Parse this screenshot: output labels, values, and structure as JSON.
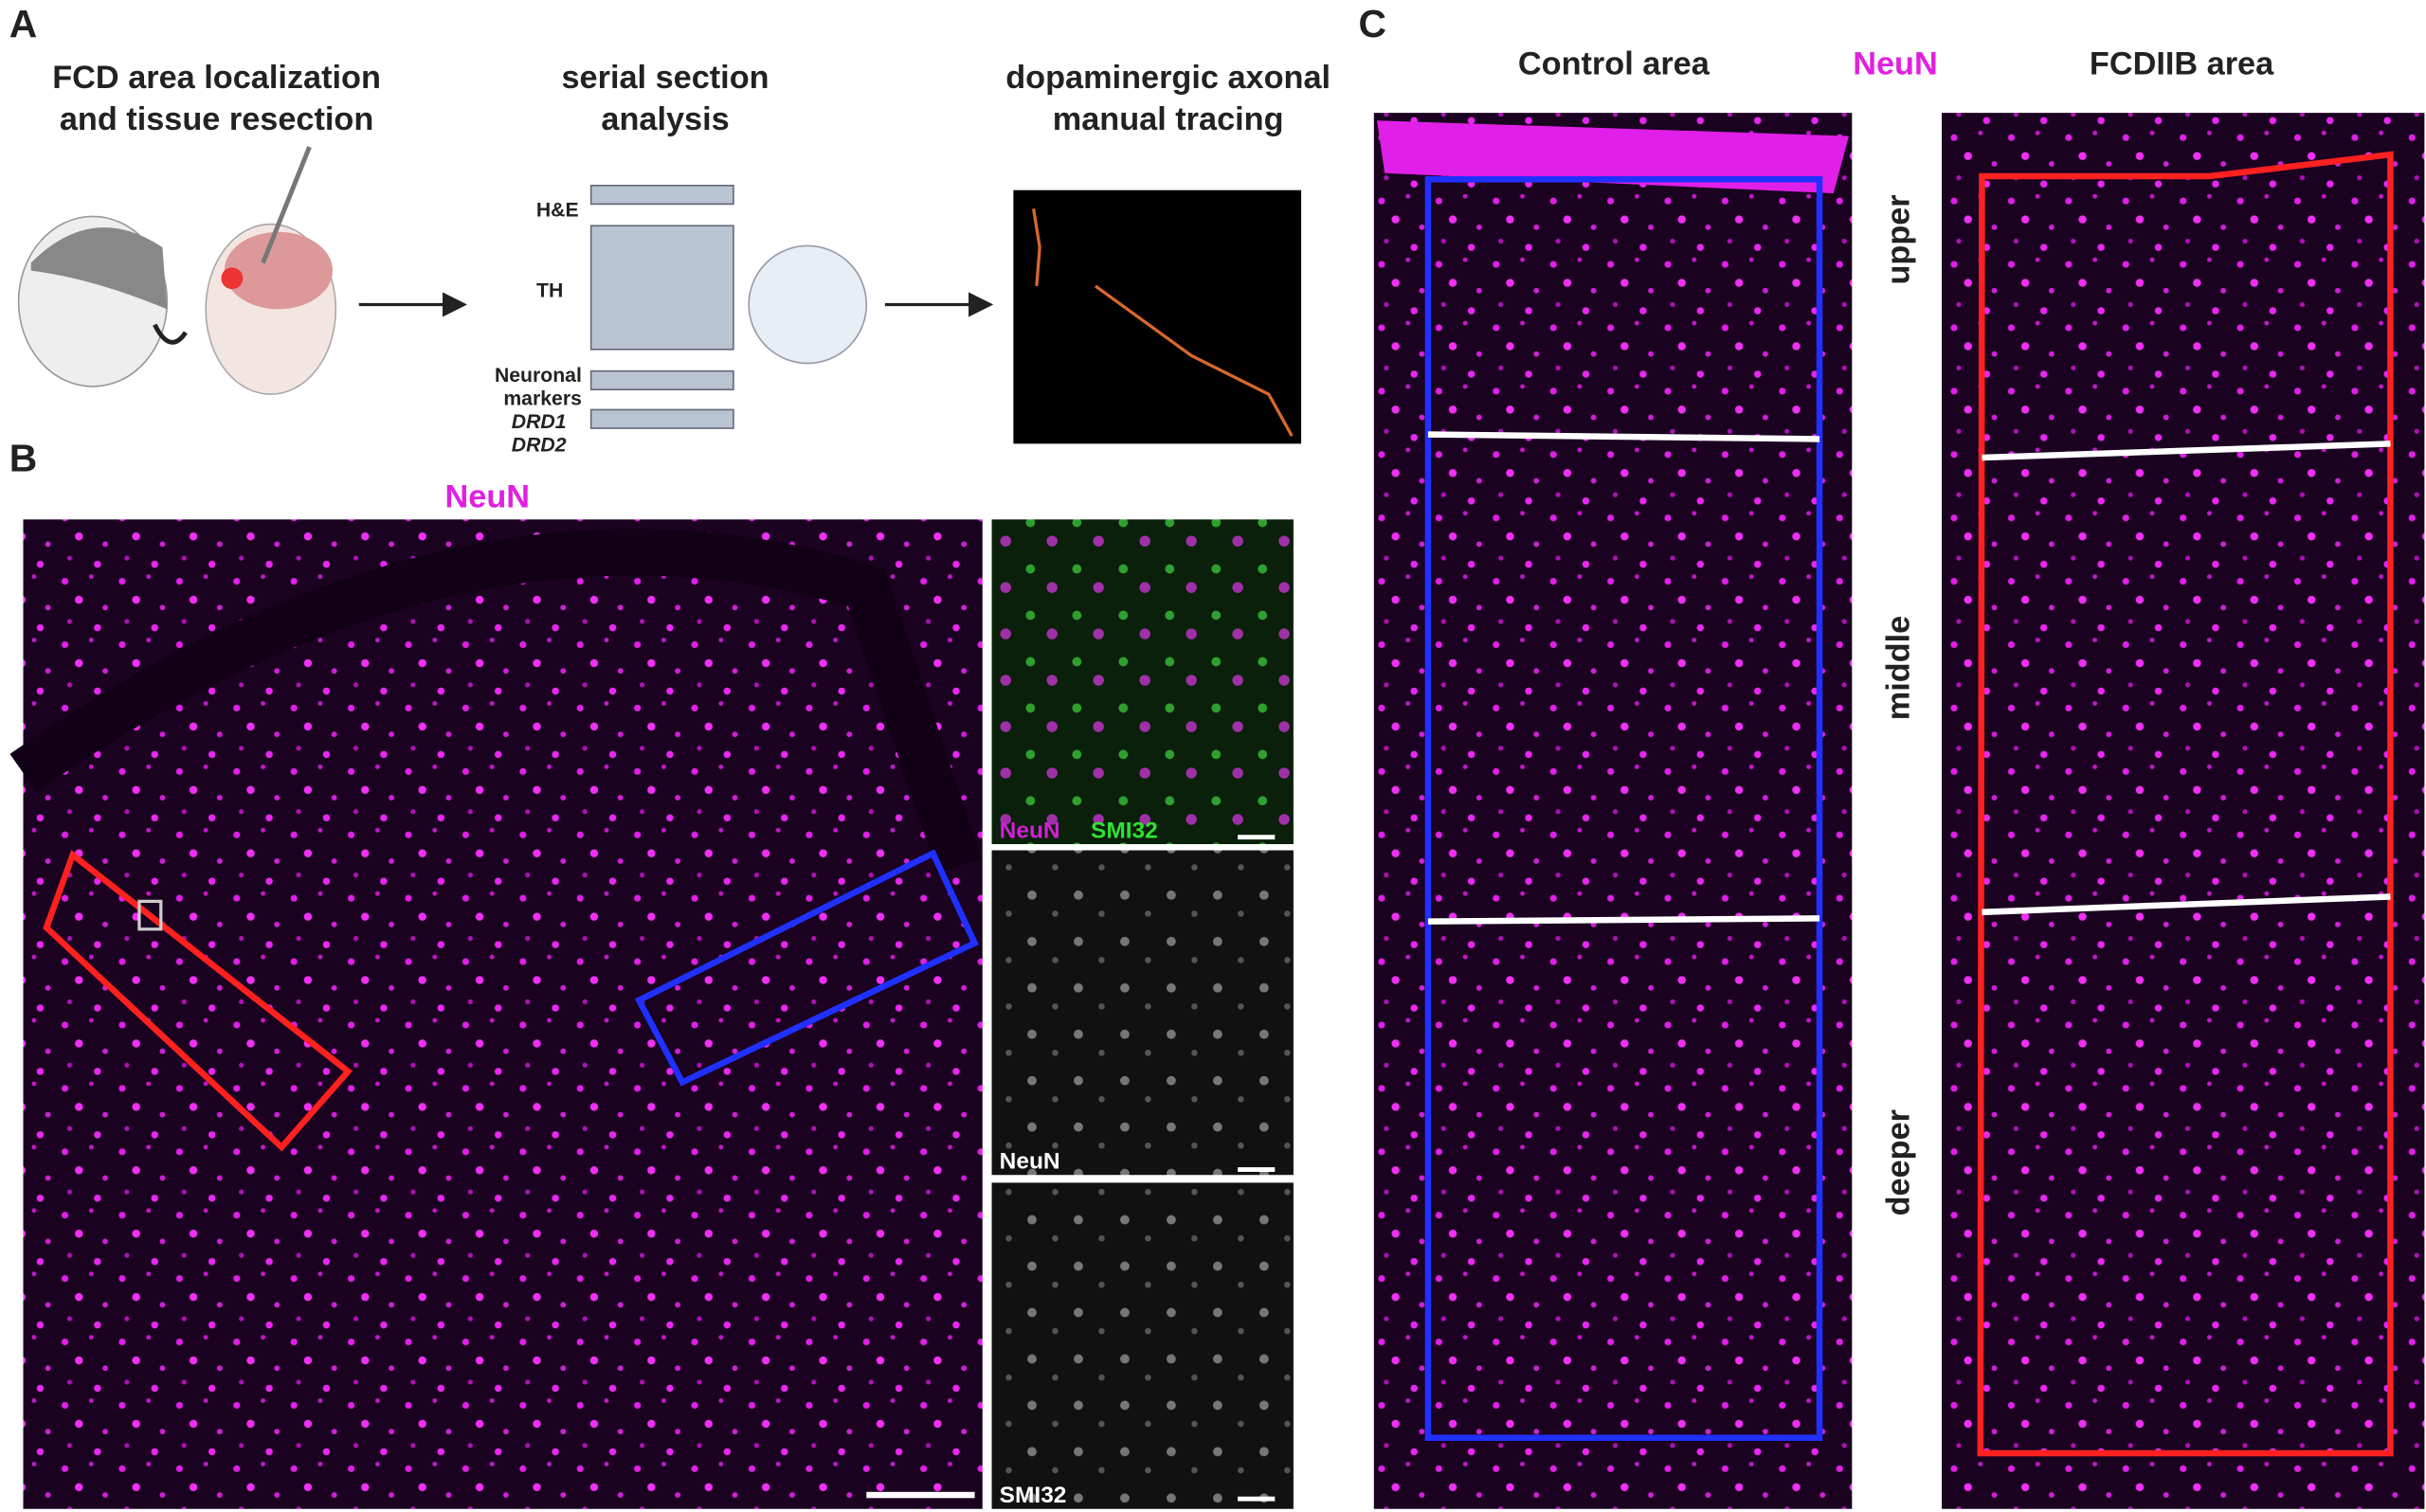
{
  "panel_a": {
    "label": "A",
    "steps": [
      {
        "title_lines": [
          "FCD area localization",
          "and tissue resection"
        ]
      },
      {
        "title_lines": [
          "serial section",
          "analysis"
        ]
      },
      {
        "title_lines": [
          "dopaminergic axonal",
          "manual tracing"
        ]
      }
    ],
    "slide_labels": {
      "he": "H&E",
      "th": "TH",
      "neuronal_lines": [
        "Neuronal",
        "markers"
      ],
      "drd1": "DRD1",
      "drd2": "DRD2"
    }
  },
  "panel_b": {
    "label": "B",
    "title": "NeuN",
    "insets": [
      {
        "labels": [
          "NeuN",
          "SMI32"
        ]
      },
      {
        "labels": [
          "NeuN"
        ]
      },
      {
        "labels": [
          "SMI32"
        ]
      }
    ]
  },
  "panel_c": {
    "label": "C",
    "left_title": "Control area",
    "stain": "NeuN",
    "right_title": "FCDIIB area",
    "layers": [
      "upper",
      "middle",
      "deeper"
    ]
  }
}
